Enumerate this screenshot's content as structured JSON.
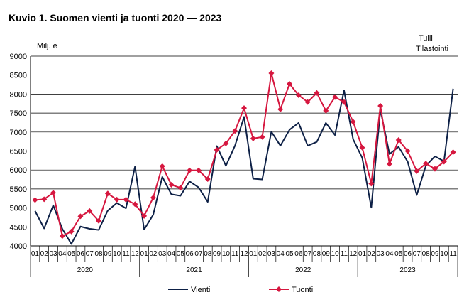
{
  "chart_data": {
    "type": "line",
    "title": "Kuvio 1. Suomen vienti ja tuonti 2020 — 2023",
    "ylabel": "Milj. e",
    "source_lines": [
      "Tulli",
      "Tilastointi"
    ],
    "ylim": [
      4000,
      9000
    ],
    "yticks": [
      4000,
      4500,
      5000,
      5500,
      6000,
      6500,
      7000,
      7500,
      8000,
      8500,
      9000
    ],
    "grid": true,
    "legend_position": "bottom",
    "month_labels": [
      "01",
      "02",
      "03",
      "04",
      "05",
      "06",
      "07",
      "08",
      "09",
      "10",
      "11",
      "12",
      "01",
      "02",
      "03",
      "04",
      "05",
      "06",
      "07",
      "08",
      "09",
      "10",
      "11",
      "12",
      "01",
      "02",
      "03",
      "04",
      "05",
      "06",
      "07",
      "08",
      "09",
      "10",
      "11",
      "12",
      "01",
      "02",
      "03",
      "04",
      "05",
      "06",
      "07",
      "08",
      "09",
      "10",
      "11"
    ],
    "year_groups": [
      {
        "label": "2020",
        "months": 12
      },
      {
        "label": "2021",
        "months": 12
      },
      {
        "label": "2022",
        "months": 12
      },
      {
        "label": "2023",
        "months": 11
      }
    ],
    "series": [
      {
        "name": "Vienti",
        "color": "#0d2046",
        "marker": "none",
        "values": [
          4920,
          4460,
          5070,
          4450,
          4050,
          4510,
          4450,
          4420,
          4930,
          5130,
          4990,
          6090,
          4430,
          4820,
          5820,
          5360,
          5320,
          5700,
          5540,
          5160,
          6630,
          6110,
          6640,
          7400,
          5770,
          5750,
          7010,
          6640,
          7060,
          7240,
          6640,
          6740,
          7240,
          6920,
          8100,
          6810,
          6320,
          5010,
          7590,
          6420,
          6610,
          6220,
          5340,
          6110,
          6360,
          6230,
          8140
        ]
      },
      {
        "name": "Tuonti",
        "color": "#d6173f",
        "marker": "diamond",
        "values": [
          5210,
          5230,
          5400,
          4260,
          4380,
          4780,
          4920,
          4660,
          5380,
          5220,
          5220,
          5100,
          4790,
          5270,
          6100,
          5610,
          5530,
          5990,
          5990,
          5760,
          6530,
          6700,
          7030,
          7630,
          6830,
          6870,
          8550,
          7600,
          8270,
          7970,
          7790,
          8030,
          7560,
          7920,
          7790,
          7270,
          6590,
          5640,
          7690,
          6160,
          6790,
          6500,
          5970,
          6170,
          6030,
          6220,
          6470
        ]
      }
    ]
  }
}
